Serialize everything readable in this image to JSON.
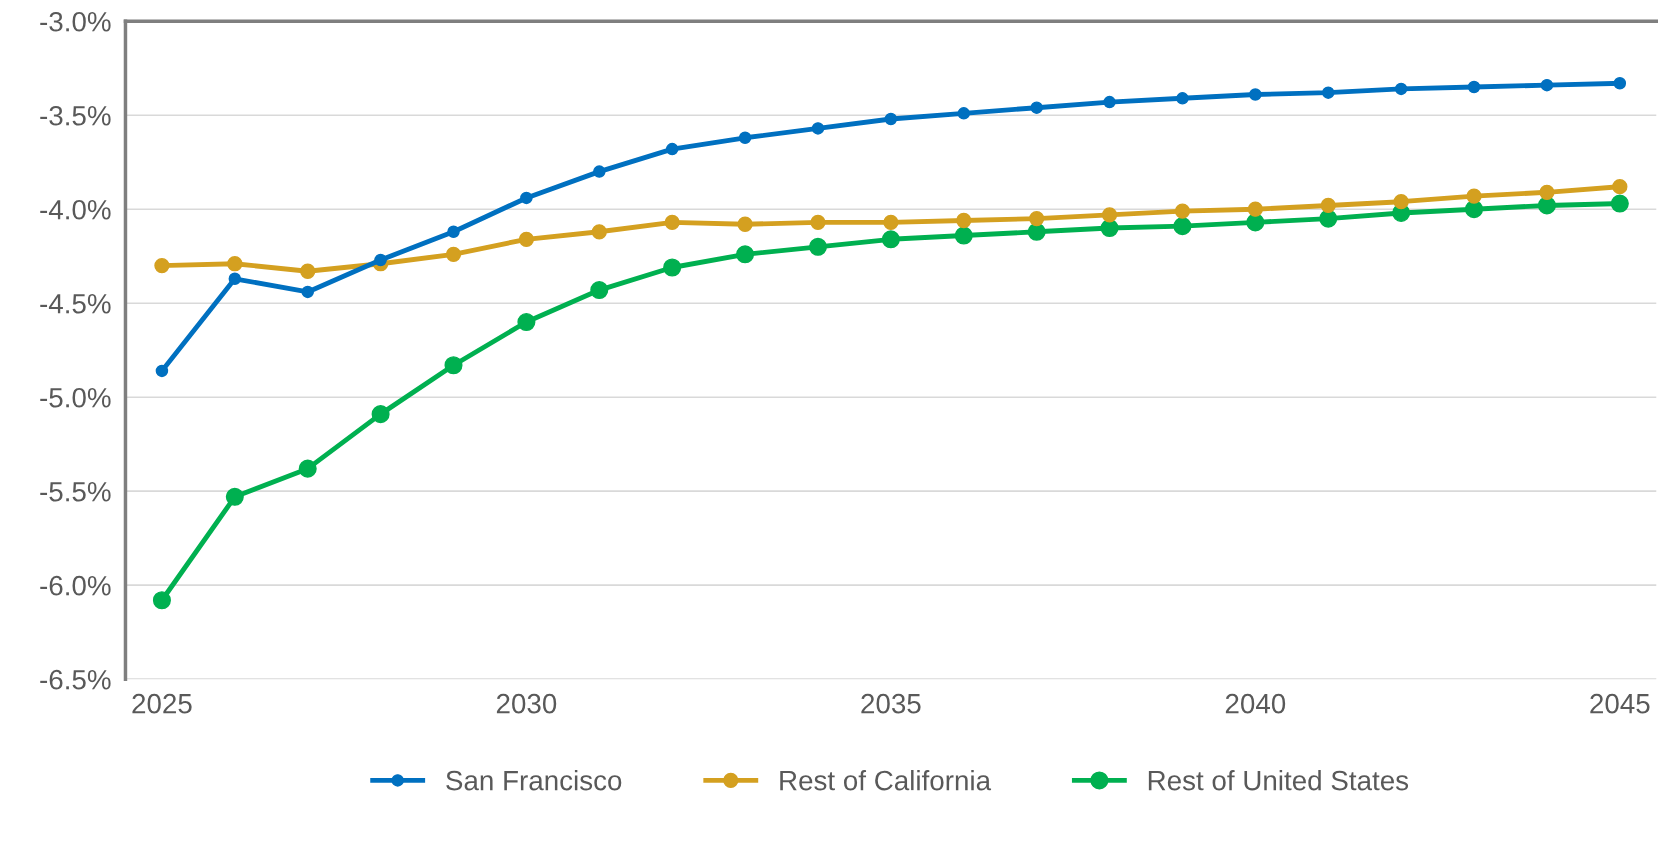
{
  "chart_data": {
    "type": "line",
    "x": [
      2025,
      2026,
      2027,
      2028,
      2029,
      2030,
      2031,
      2032,
      2033,
      2034,
      2035,
      2036,
      2037,
      2038,
      2039,
      2040,
      2041,
      2042,
      2043,
      2044,
      2045
    ],
    "series": [
      {
        "name": "San Francisco",
        "color": "#0070c0",
        "values": [
          -4.86,
          -4.37,
          -4.44,
          -4.27,
          -4.12,
          -3.94,
          -3.8,
          -3.68,
          -3.62,
          -3.57,
          -3.52,
          -3.49,
          -3.46,
          -3.43,
          -3.41,
          -3.39,
          -3.38,
          -3.36,
          -3.35,
          -3.34,
          -3.33
        ]
      },
      {
        "name": "Rest of California",
        "color": "#d4a020",
        "values": [
          -4.3,
          -4.29,
          -4.33,
          -4.29,
          -4.24,
          -4.16,
          -4.12,
          -4.07,
          -4.08,
          -4.07,
          -4.07,
          -4.06,
          -4.05,
          -4.03,
          -4.01,
          -4.0,
          -3.98,
          -3.96,
          -3.93,
          -3.91,
          -3.88
        ]
      },
      {
        "name": "Rest of United States",
        "color": "#00b050",
        "values": [
          -6.08,
          -5.53,
          -5.38,
          -5.09,
          -4.83,
          -4.6,
          -4.43,
          -4.31,
          -4.24,
          -4.2,
          -4.16,
          -4.14,
          -4.12,
          -4.1,
          -4.09,
          -4.07,
          -4.05,
          -4.02,
          -4.0,
          -3.98,
          -3.97
        ]
      }
    ],
    "xlim": [
      2024.5,
      2045.5
    ],
    "xticks": [
      2025,
      2030,
      2035,
      2040,
      2045
    ],
    "ylim": [
      -6.5,
      -3.0
    ],
    "yticks": [
      {
        "value": -6.5,
        "label": "-6.5%"
      },
      {
        "value": -6.0,
        "label": "-6.0%"
      },
      {
        "value": -5.5,
        "label": "-5.5%"
      },
      {
        "value": -5.0,
        "label": "-5.0%"
      },
      {
        "value": -4.5,
        "label": "-4.5%"
      },
      {
        "value": -4.0,
        "label": "-4.0%"
      },
      {
        "value": -3.5,
        "label": "-3.5%"
      },
      {
        "value": -3.0,
        "label": "-3.0%"
      }
    ],
    "grid": "y",
    "legend": "bottom",
    "marker": "circle",
    "line_style": "solid"
  }
}
